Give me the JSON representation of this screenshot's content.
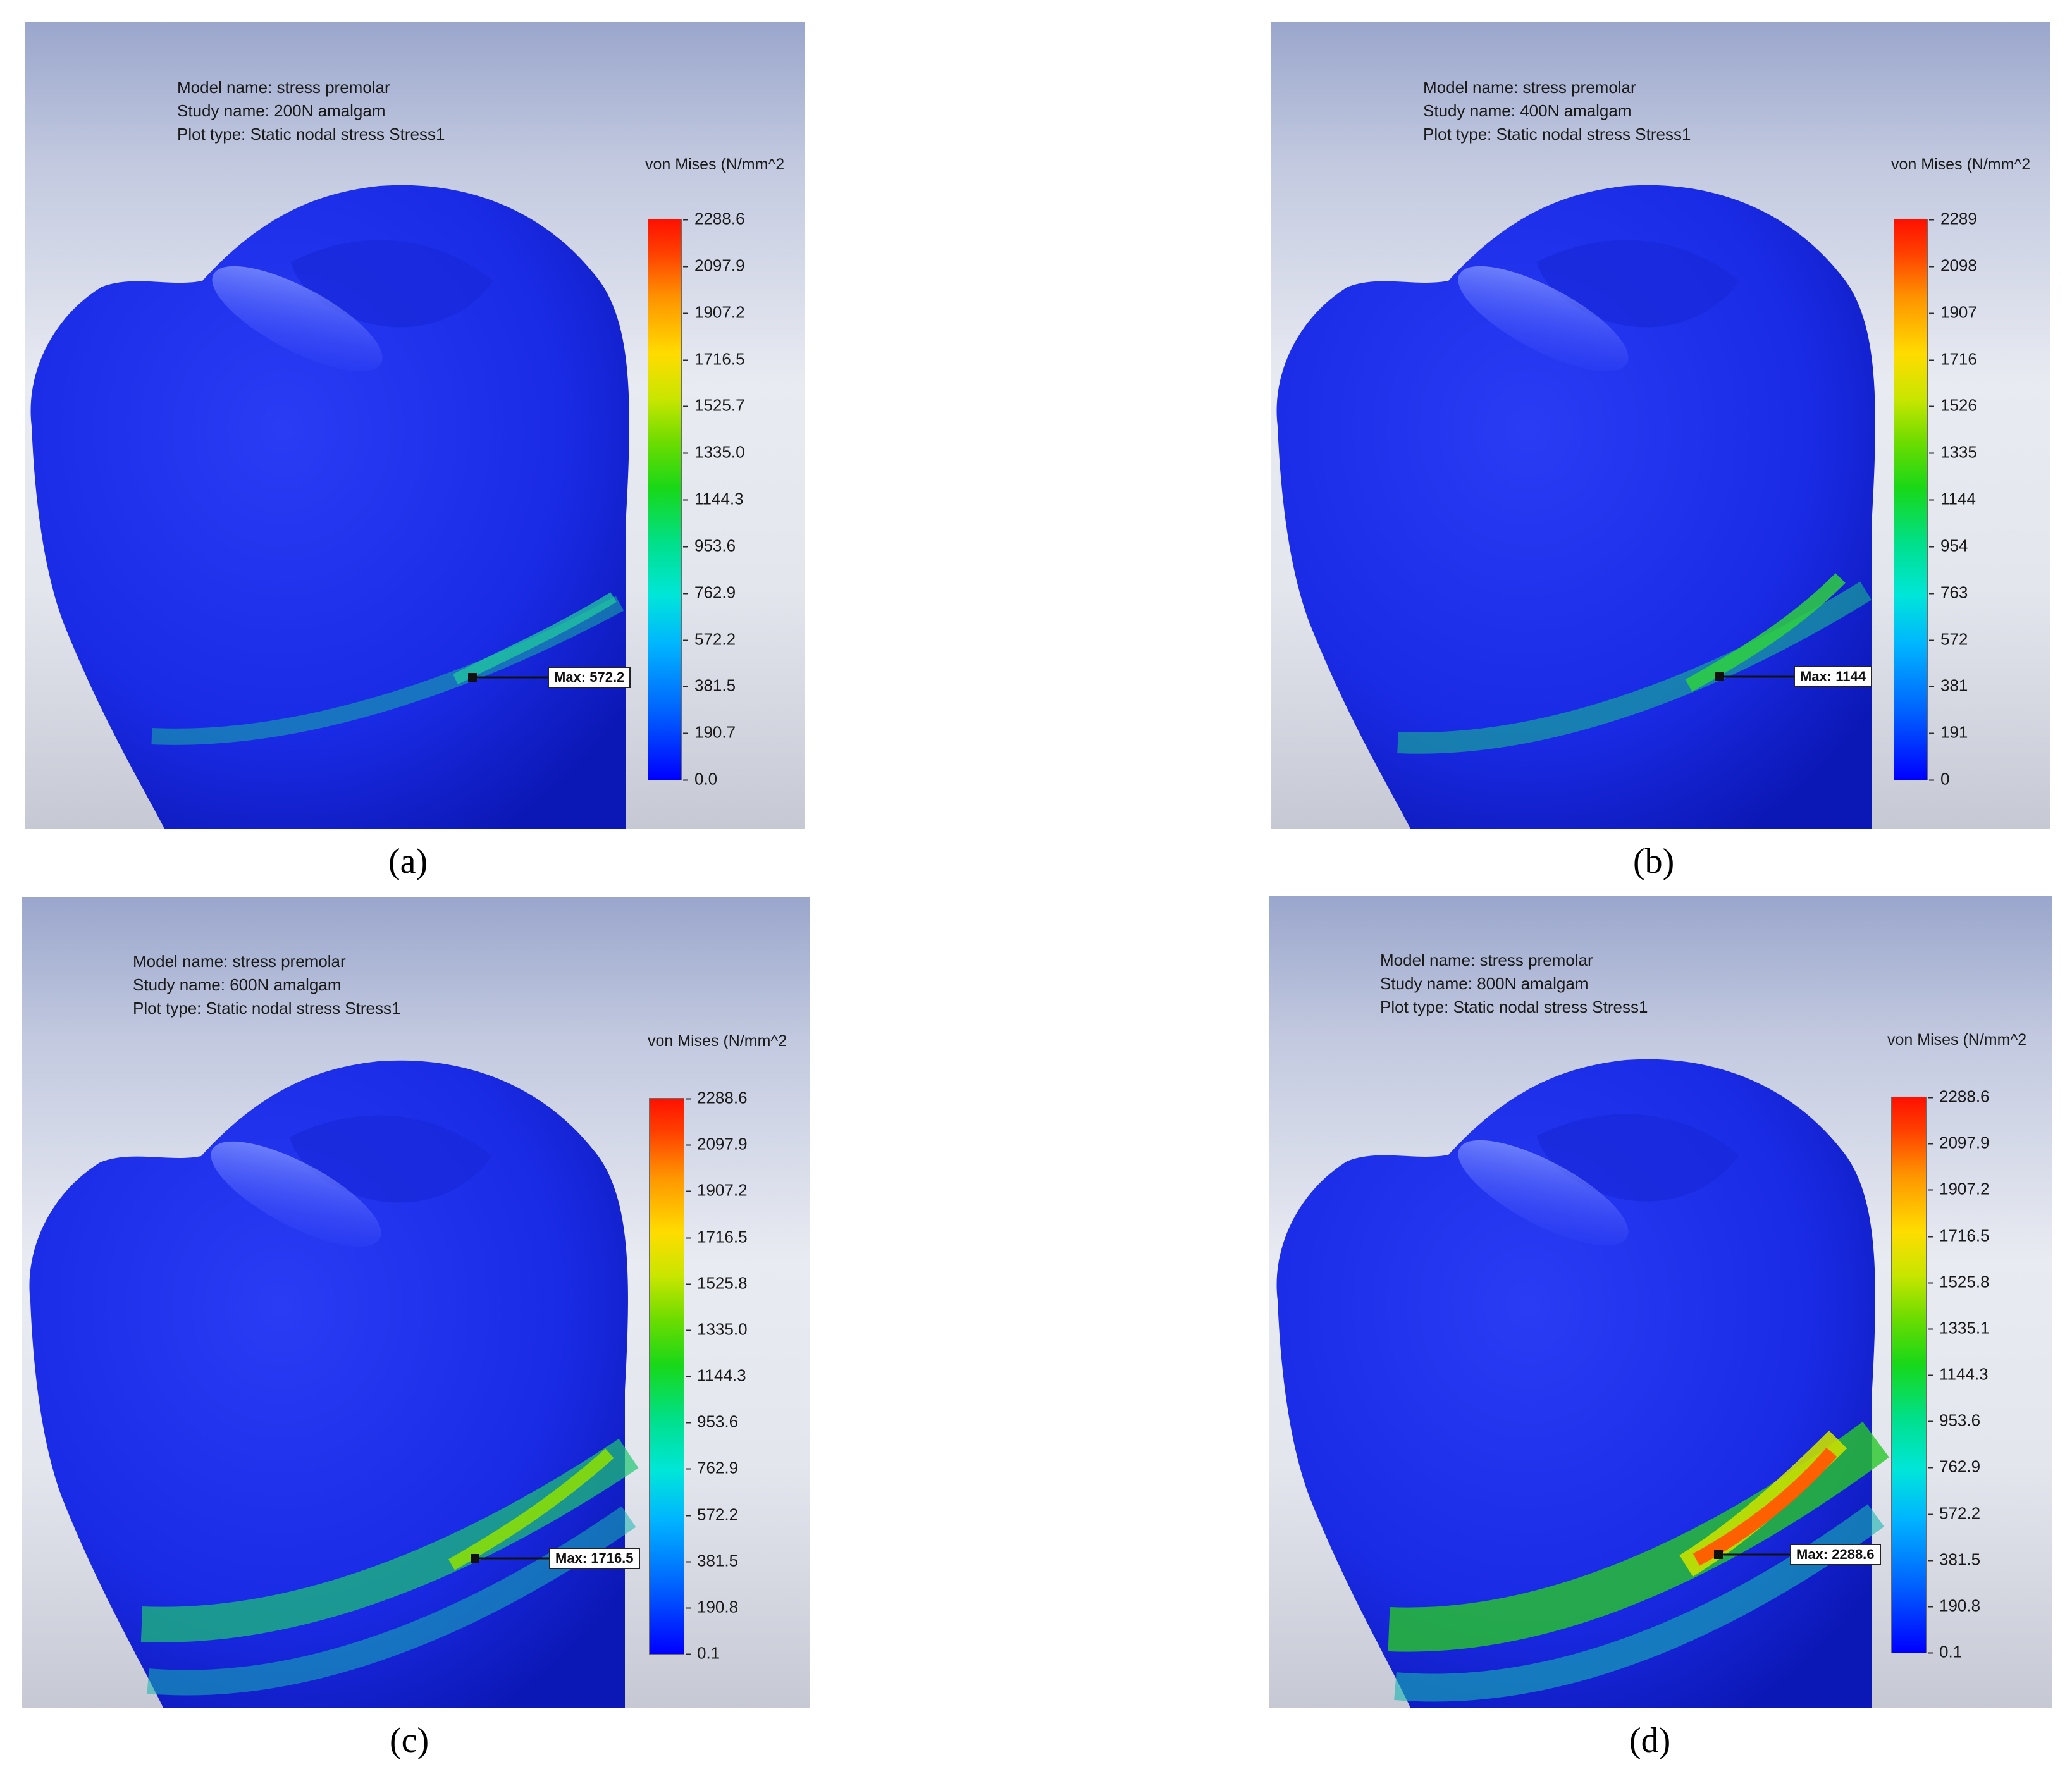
{
  "panels": [
    {
      "id": "a",
      "caption": "(a)",
      "model_name": "Model name: stress premolar",
      "study_name": "Study name: 200N amalgam",
      "plot_type": "Plot type: Static nodal stress Stress1",
      "legend_title": "von Mises (N/mm^2",
      "ticks": [
        "2288.6",
        "2097.9",
        "1907.2",
        "1716.5",
        "1525.7",
        "1335.0",
        "1144.3",
        "953.6",
        "762.9",
        "572.2",
        "381.5",
        "190.7",
        "0.0"
      ],
      "max_label": "Max: 572.2",
      "max_value": 572.2,
      "scale_max": 2288.6
    },
    {
      "id": "b",
      "caption": "(b)",
      "model_name": "Model name: stress premolar",
      "study_name": "Study name: 400N amalgam",
      "plot_type": "Plot type: Static nodal stress Stress1",
      "legend_title": "von Mises (N/mm^2",
      "ticks": [
        "2289",
        "2098",
        "1907",
        "1716",
        "1526",
        "1335",
        "1144",
        "954",
        "763",
        "572",
        "381",
        "191",
        "0"
      ],
      "max_label": "Max: 1144",
      "max_value": 1144,
      "scale_max": 2289
    },
    {
      "id": "c",
      "caption": "(c)",
      "model_name": "Model name: stress premolar",
      "study_name": "Study name: 600N amalgam",
      "plot_type": "Plot type: Static nodal stress Stress1",
      "legend_title": "von Mises (N/mm^2",
      "ticks": [
        "2288.6",
        "2097.9",
        "1907.2",
        "1716.5",
        "1525.8",
        "1335.0",
        "1144.3",
        "953.6",
        "762.9",
        "572.2",
        "381.5",
        "190.8",
        "0.1"
      ],
      "max_label": "Max: 1716.5",
      "max_value": 1716.5,
      "scale_max": 2288.6
    },
    {
      "id": "d",
      "caption": "(d)",
      "model_name": "Model name: stress premolar",
      "study_name": "Study name: 800N amalgam",
      "plot_type": "Plot type: Static nodal stress Stress1",
      "legend_title": "von Mises (N/mm^2",
      "ticks": [
        "2288.6",
        "2097.9",
        "1907.2",
        "1716.5",
        "1525.8",
        "1335.1",
        "1144.3",
        "953.6",
        "762.9",
        "572.2",
        "381.5",
        "190.8",
        "0.1"
      ],
      "max_label": "Max: 2288.6",
      "max_value": 2288.6,
      "scale_max": 2288.6
    }
  ],
  "colors": {
    "tooth_body": "#1a2be6",
    "tooth_shadow": "#0a14a8",
    "low_stress_band": "#18b0a0",
    "mid_stress_band": "#1ed020",
    "high_stress_band": "#ff5a00"
  }
}
